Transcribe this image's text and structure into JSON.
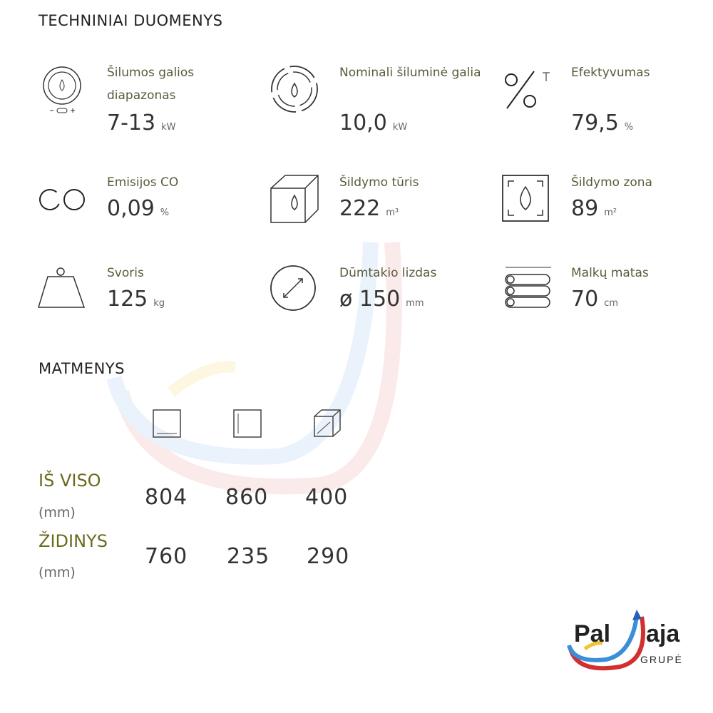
{
  "headings": {
    "tech": "TECHNINIAI DUOMENYS",
    "dims": "MATMENYS"
  },
  "specs": [
    {
      "label": "Šilumos galios diapazonas",
      "value": "7-13",
      "unit": "kW",
      "icon": "power-range-icon"
    },
    {
      "label": "Nominali šiluminė galia",
      "value": "10,0",
      "unit": "kW",
      "icon": "nominal-power-icon"
    },
    {
      "label": "Efektyvumas",
      "value": "79,5",
      "unit": "%",
      "icon": "percent-icon"
    },
    {
      "label": "Emisijos CO",
      "value": "0,09",
      "unit": "%",
      "icon": "co-icon",
      "icon_text": "CO"
    },
    {
      "label": "Šildymo tūris",
      "value": "222",
      "unit": "m³",
      "icon": "heating-volume-cube-icon"
    },
    {
      "label": "Šildymo zona",
      "value": "89",
      "unit": "m²",
      "icon": "heating-zone-icon"
    },
    {
      "label": "Svoris",
      "value": "125",
      "unit": "kg",
      "icon": "weight-icon"
    },
    {
      "label": "Dūmtakio lizdas",
      "value": "ø 150",
      "unit": "mm",
      "icon": "flue-diameter-icon"
    },
    {
      "label": "Malkų matas",
      "value": "70",
      "unit": "cm",
      "icon": "firewood-icon"
    }
  ],
  "dimensions": {
    "rows": [
      {
        "label": "IŠ VISO",
        "unit": "(mm)",
        "values": [
          "804",
          "860",
          "400"
        ]
      },
      {
        "label": "ŽIDINYS",
        "unit": "(mm)",
        "values": [
          "760",
          "235",
          "290"
        ]
      }
    ]
  },
  "watermark": {
    "text": "Pal aja",
    "sub": "GRUPĖ"
  },
  "logo": {
    "text": "Pal aja",
    "sub": "GRUPĖ"
  },
  "colors": {
    "label": "#5a5a3a",
    "rowlabel": "#6b6b1f"
  }
}
